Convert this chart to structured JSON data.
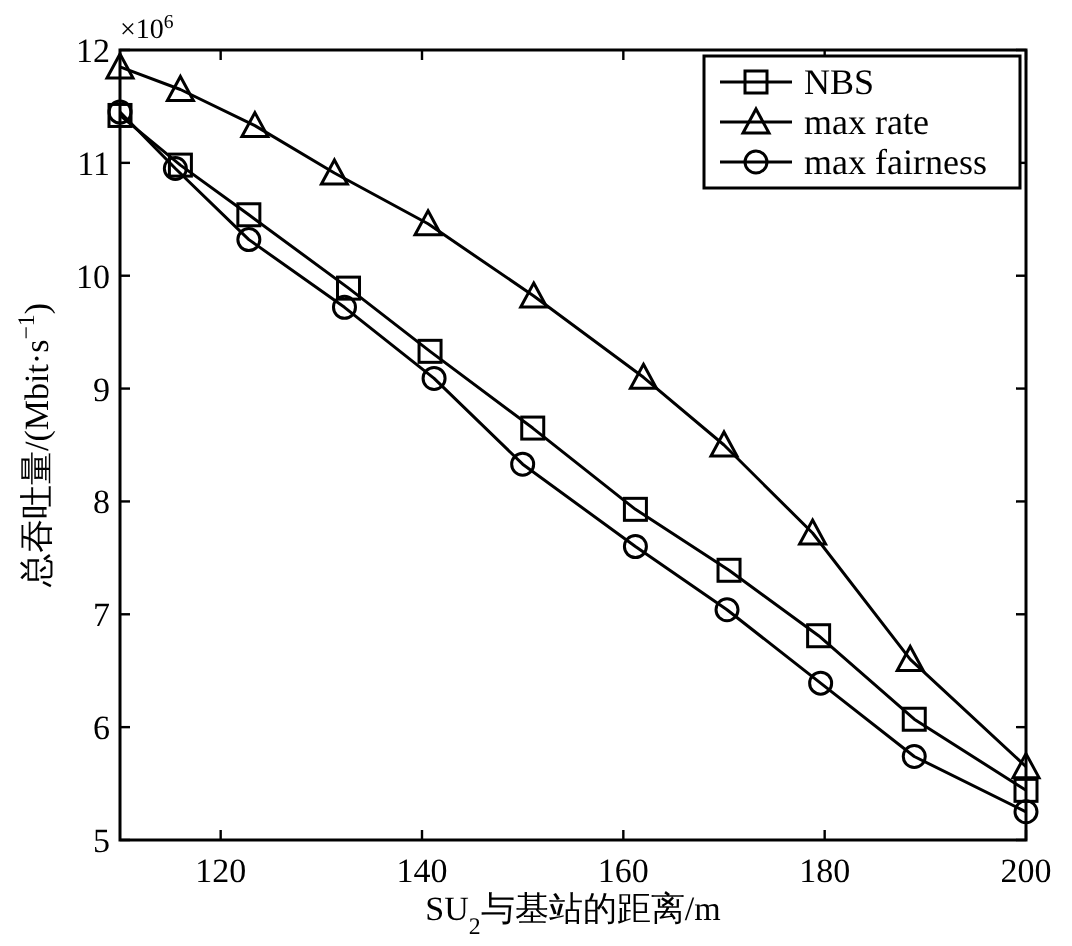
{
  "chart_data": {
    "type": "line",
    "xlabel": "SU$_{2}$与基站的距离/m",
    "ylabel": "总吞吐量/(Mbit·s$^{−1}$)",
    "annotations": [
      "×10$^{6}$"
    ],
    "xlim": [
      110,
      200
    ],
    "xticks": [
      120,
      140,
      160,
      180,
      200
    ],
    "ylim": [
      5,
      12
    ],
    "yticks": [
      5,
      6,
      7,
      8,
      9,
      10,
      11,
      12
    ],
    "legend": "top right",
    "line_style": "solid",
    "series": [
      {
        "name": "NBS",
        "color": "#000000",
        "marker": "square",
        "x": [
          110,
          116,
          122.8,
          132.7,
          140.8,
          151,
          161.2,
          170.5,
          179.4,
          188.9,
          200
        ],
        "values": [
          11.42,
          10.98,
          10.54,
          9.89,
          9.33,
          8.65,
          7.93,
          7.39,
          6.81,
          6.07,
          5.44
        ]
      },
      {
        "name": "max rate",
        "color": "#000000",
        "marker": "triangle",
        "x": [
          110,
          116,
          123.4,
          131.3,
          140.6,
          151.1,
          162,
          170,
          178.8,
          188.5,
          200
        ],
        "values": [
          11.85,
          11.65,
          11.33,
          10.91,
          10.46,
          9.82,
          9.1,
          8.5,
          7.72,
          6.6,
          5.65
        ]
      },
      {
        "name": "max fairness",
        "color": "#000000",
        "marker": "circle",
        "x": [
          110,
          115.5,
          122.8,
          132.3,
          141.2,
          150,
          161.2,
          170.3,
          179.6,
          188.9,
          200
        ],
        "values": [
          11.45,
          10.95,
          10.32,
          9.72,
          9.09,
          8.33,
          7.6,
          7.04,
          6.39,
          5.74,
          5.25
        ]
      }
    ]
  }
}
